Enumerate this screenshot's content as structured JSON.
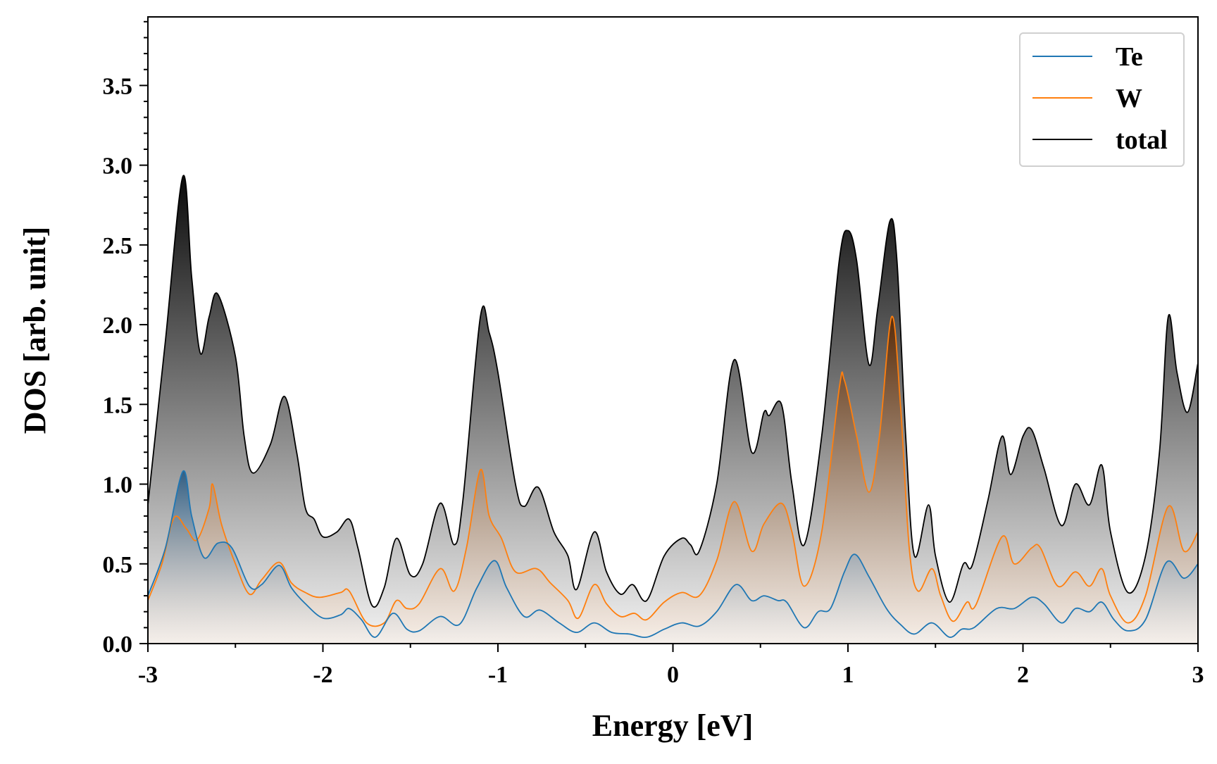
{
  "chart_data": {
    "type": "area",
    "title": "",
    "xlabel": "Energy [eV]",
    "ylabel": "DOS [arb. unit]",
    "xlim": [
      -3,
      3
    ],
    "ylim": [
      0,
      3.93
    ],
    "xticks": [
      "-3",
      "-2",
      "-1",
      "0",
      "1",
      "2",
      "3"
    ],
    "xtick_values": [
      -3,
      -2,
      -1,
      0,
      1,
      2,
      3
    ],
    "yticks": [
      "0.0",
      "0.5",
      "1.0",
      "1.5",
      "2.0",
      "2.5",
      "3.0",
      "3.5"
    ],
    "ytick_values": [
      0,
      0.5,
      1.0,
      1.5,
      2.0,
      2.5,
      3.0,
      3.5
    ],
    "legend_position": "top-right",
    "grid": false,
    "series": [
      {
        "name": "total",
        "color": "#000000",
        "points": [
          [
            -3.0,
            0.87
          ],
          [
            -2.9,
            1.9
          ],
          [
            -2.8,
            2.93
          ],
          [
            -2.75,
            2.3
          ],
          [
            -2.7,
            1.82
          ],
          [
            -2.65,
            2.05
          ],
          [
            -2.6,
            2.19
          ],
          [
            -2.5,
            1.8
          ],
          [
            -2.45,
            1.3
          ],
          [
            -2.4,
            1.07
          ],
          [
            -2.3,
            1.25
          ],
          [
            -2.22,
            1.55
          ],
          [
            -2.15,
            1.2
          ],
          [
            -2.1,
            0.85
          ],
          [
            -2.05,
            0.78
          ],
          [
            -2.0,
            0.67
          ],
          [
            -1.92,
            0.7
          ],
          [
            -1.85,
            0.78
          ],
          [
            -1.8,
            0.6
          ],
          [
            -1.72,
            0.24
          ],
          [
            -1.65,
            0.35
          ],
          [
            -1.58,
            0.66
          ],
          [
            -1.5,
            0.43
          ],
          [
            -1.43,
            0.5
          ],
          [
            -1.33,
            0.88
          ],
          [
            -1.25,
            0.62
          ],
          [
            -1.2,
            0.9
          ],
          [
            -1.1,
            2.05
          ],
          [
            -1.05,
            1.95
          ],
          [
            -1.0,
            1.7
          ],
          [
            -0.9,
            1.0
          ],
          [
            -0.85,
            0.86
          ],
          [
            -0.77,
            0.98
          ],
          [
            -0.68,
            0.7
          ],
          [
            -0.6,
            0.55
          ],
          [
            -0.55,
            0.34
          ],
          [
            -0.45,
            0.7
          ],
          [
            -0.38,
            0.45
          ],
          [
            -0.3,
            0.31
          ],
          [
            -0.23,
            0.37
          ],
          [
            -0.15,
            0.27
          ],
          [
            -0.05,
            0.55
          ],
          [
            0.05,
            0.66
          ],
          [
            0.1,
            0.62
          ],
          [
            0.15,
            0.58
          ],
          [
            0.25,
            1.0
          ],
          [
            0.35,
            1.78
          ],
          [
            0.45,
            1.2
          ],
          [
            0.52,
            1.45
          ],
          [
            0.55,
            1.43
          ],
          [
            0.62,
            1.5
          ],
          [
            0.68,
            1.0
          ],
          [
            0.75,
            0.62
          ],
          [
            0.85,
            1.3
          ],
          [
            0.95,
            2.4
          ],
          [
            1.0,
            2.59
          ],
          [
            1.05,
            2.4
          ],
          [
            1.12,
            1.75
          ],
          [
            1.17,
            2.1
          ],
          [
            1.24,
            2.65
          ],
          [
            1.28,
            2.4
          ],
          [
            1.33,
            1.3
          ],
          [
            1.38,
            0.55
          ],
          [
            1.46,
            0.87
          ],
          [
            1.5,
            0.55
          ],
          [
            1.58,
            0.26
          ],
          [
            1.66,
            0.5
          ],
          [
            1.71,
            0.49
          ],
          [
            1.8,
            0.9
          ],
          [
            1.88,
            1.3
          ],
          [
            1.93,
            1.06
          ],
          [
            2.0,
            1.3
          ],
          [
            2.05,
            1.34
          ],
          [
            2.12,
            1.1
          ],
          [
            2.22,
            0.74
          ],
          [
            2.3,
            1.0
          ],
          [
            2.38,
            0.87
          ],
          [
            2.45,
            1.12
          ],
          [
            2.5,
            0.7
          ],
          [
            2.6,
            0.32
          ],
          [
            2.7,
            0.55
          ],
          [
            2.78,
            1.2
          ],
          [
            2.83,
            2.05
          ],
          [
            2.88,
            1.7
          ],
          [
            2.94,
            1.45
          ],
          [
            3.0,
            1.76
          ]
        ]
      },
      {
        "name": "W",
        "color": "#ff7f0e",
        "points": [
          [
            -3.0,
            0.27
          ],
          [
            -2.92,
            0.5
          ],
          [
            -2.85,
            0.79
          ],
          [
            -2.78,
            0.72
          ],
          [
            -2.72,
            0.65
          ],
          [
            -2.65,
            0.85
          ],
          [
            -2.63,
            1.0
          ],
          [
            -2.58,
            0.75
          ],
          [
            -2.5,
            0.5
          ],
          [
            -2.42,
            0.31
          ],
          [
            -2.35,
            0.4
          ],
          [
            -2.25,
            0.51
          ],
          [
            -2.18,
            0.38
          ],
          [
            -2.1,
            0.32
          ],
          [
            -2.02,
            0.29
          ],
          [
            -1.9,
            0.32
          ],
          [
            -1.85,
            0.33
          ],
          [
            -1.75,
            0.13
          ],
          [
            -1.65,
            0.13
          ],
          [
            -1.58,
            0.27
          ],
          [
            -1.52,
            0.22
          ],
          [
            -1.45,
            0.25
          ],
          [
            -1.33,
            0.47
          ],
          [
            -1.25,
            0.33
          ],
          [
            -1.18,
            0.6
          ],
          [
            -1.1,
            1.09
          ],
          [
            -1.05,
            0.8
          ],
          [
            -0.98,
            0.66
          ],
          [
            -0.9,
            0.45
          ],
          [
            -0.78,
            0.47
          ],
          [
            -0.7,
            0.38
          ],
          [
            -0.6,
            0.27
          ],
          [
            -0.54,
            0.16
          ],
          [
            -0.45,
            0.37
          ],
          [
            -0.38,
            0.25
          ],
          [
            -0.3,
            0.17
          ],
          [
            -0.22,
            0.19
          ],
          [
            -0.15,
            0.15
          ],
          [
            -0.05,
            0.26
          ],
          [
            0.05,
            0.32
          ],
          [
            0.15,
            0.3
          ],
          [
            0.25,
            0.52
          ],
          [
            0.35,
            0.89
          ],
          [
            0.45,
            0.58
          ],
          [
            0.52,
            0.75
          ],
          [
            0.62,
            0.88
          ],
          [
            0.68,
            0.7
          ],
          [
            0.75,
            0.36
          ],
          [
            0.85,
            0.7
          ],
          [
            0.95,
            1.6
          ],
          [
            0.98,
            1.65
          ],
          [
            1.05,
            1.3
          ],
          [
            1.12,
            0.95
          ],
          [
            1.18,
            1.3
          ],
          [
            1.25,
            2.05
          ],
          [
            1.3,
            1.5
          ],
          [
            1.35,
            0.6
          ],
          [
            1.4,
            0.33
          ],
          [
            1.48,
            0.47
          ],
          [
            1.53,
            0.3
          ],
          [
            1.6,
            0.14
          ],
          [
            1.68,
            0.26
          ],
          [
            1.73,
            0.24
          ],
          [
            1.88,
            0.67
          ],
          [
            1.95,
            0.5
          ],
          [
            2.05,
            0.6
          ],
          [
            2.1,
            0.6
          ],
          [
            2.2,
            0.36
          ],
          [
            2.3,
            0.45
          ],
          [
            2.38,
            0.36
          ],
          [
            2.45,
            0.47
          ],
          [
            2.5,
            0.3
          ],
          [
            2.6,
            0.13
          ],
          [
            2.7,
            0.3
          ],
          [
            2.83,
            0.86
          ],
          [
            2.92,
            0.58
          ],
          [
            3.0,
            0.7
          ]
        ]
      },
      {
        "name": "Te",
        "color": "#1f77b4",
        "points": [
          [
            -3.0,
            0.3
          ],
          [
            -2.9,
            0.6
          ],
          [
            -2.8,
            1.08
          ],
          [
            -2.75,
            0.8
          ],
          [
            -2.68,
            0.54
          ],
          [
            -2.6,
            0.63
          ],
          [
            -2.52,
            0.6
          ],
          [
            -2.42,
            0.36
          ],
          [
            -2.35,
            0.37
          ],
          [
            -2.25,
            0.49
          ],
          [
            -2.18,
            0.35
          ],
          [
            -2.1,
            0.25
          ],
          [
            -2.0,
            0.16
          ],
          [
            -1.9,
            0.18
          ],
          [
            -1.85,
            0.22
          ],
          [
            -1.78,
            0.15
          ],
          [
            -1.7,
            0.04
          ],
          [
            -1.6,
            0.19
          ],
          [
            -1.52,
            0.09
          ],
          [
            -1.45,
            0.08
          ],
          [
            -1.33,
            0.17
          ],
          [
            -1.22,
            0.12
          ],
          [
            -1.12,
            0.35
          ],
          [
            -1.02,
            0.52
          ],
          [
            -0.95,
            0.35
          ],
          [
            -0.85,
            0.17
          ],
          [
            -0.76,
            0.21
          ],
          [
            -0.65,
            0.13
          ],
          [
            -0.55,
            0.07
          ],
          [
            -0.45,
            0.13
          ],
          [
            -0.35,
            0.07
          ],
          [
            -0.25,
            0.06
          ],
          [
            -0.15,
            0.04
          ],
          [
            -0.05,
            0.09
          ],
          [
            0.05,
            0.13
          ],
          [
            0.15,
            0.11
          ],
          [
            0.25,
            0.2
          ],
          [
            0.36,
            0.37
          ],
          [
            0.45,
            0.27
          ],
          [
            0.52,
            0.3
          ],
          [
            0.6,
            0.27
          ],
          [
            0.65,
            0.26
          ],
          [
            0.75,
            0.1
          ],
          [
            0.83,
            0.2
          ],
          [
            0.9,
            0.22
          ],
          [
            0.98,
            0.45
          ],
          [
            1.04,
            0.56
          ],
          [
            1.12,
            0.42
          ],
          [
            1.22,
            0.22
          ],
          [
            1.3,
            0.12
          ],
          [
            1.38,
            0.06
          ],
          [
            1.48,
            0.13
          ],
          [
            1.58,
            0.04
          ],
          [
            1.65,
            0.09
          ],
          [
            1.72,
            0.1
          ],
          [
            1.85,
            0.22
          ],
          [
            1.95,
            0.22
          ],
          [
            2.05,
            0.29
          ],
          [
            2.12,
            0.25
          ],
          [
            2.22,
            0.13
          ],
          [
            2.3,
            0.22
          ],
          [
            2.38,
            0.2
          ],
          [
            2.45,
            0.26
          ],
          [
            2.52,
            0.15
          ],
          [
            2.6,
            0.08
          ],
          [
            2.7,
            0.15
          ],
          [
            2.82,
            0.51
          ],
          [
            2.92,
            0.41
          ],
          [
            3.0,
            0.5
          ]
        ]
      }
    ],
    "legend": [
      {
        "label": "Te",
        "color": "#1f77b4"
      },
      {
        "label": "W",
        "color": "#ff7f0e"
      },
      {
        "label": "total",
        "color": "#000000"
      }
    ]
  }
}
